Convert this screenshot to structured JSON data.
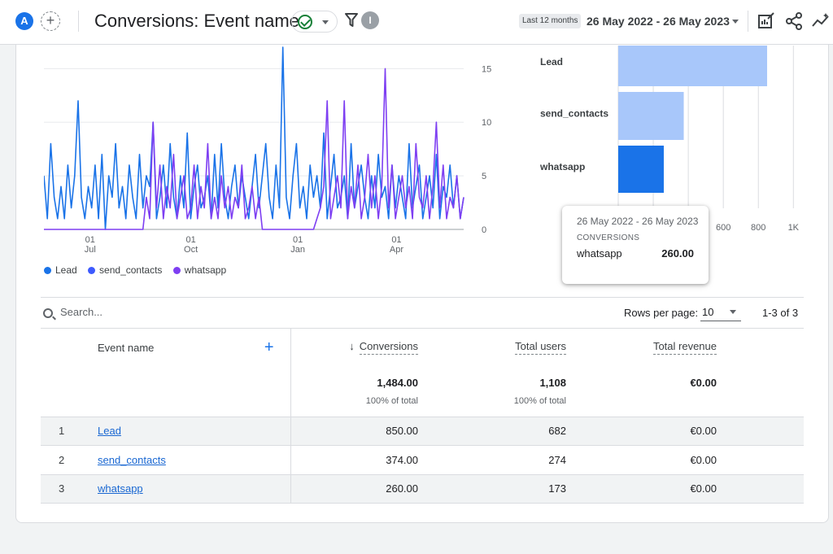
{
  "header": {
    "avatar_letter": "A",
    "title": "Conversions: Event name",
    "range_label": "Last 12 months",
    "date_range": "26 May 2022 - 26 May 2023",
    "info_letter": "I"
  },
  "line_chart": {
    "y_ticks": [
      "15",
      "10",
      "5",
      "0"
    ],
    "x_ticks": [
      {
        "day": "01",
        "month": "Jul"
      },
      {
        "day": "01",
        "month": "Oct"
      },
      {
        "day": "01",
        "month": "Jan"
      },
      {
        "day": "01",
        "month": "Apr"
      }
    ],
    "legend": [
      "Lead",
      "send_contacts",
      "whatsapp"
    ]
  },
  "bar_chart": {
    "x_ticks": [
      "600",
      "800",
      "1K"
    ]
  },
  "tooltip": {
    "range": "26 May 2022 - 26 May 2023",
    "metric": "CONVERSIONS",
    "label": "whatsapp",
    "value": "260.00"
  },
  "table_controls": {
    "search_placeholder": "Search...",
    "rows_per_page_label": "Rows per page:",
    "rows_per_page": "10",
    "pager": "1-3 of 3"
  },
  "table": {
    "col_event": "Event name",
    "col_conversions": "Conversions",
    "col_users": "Total users",
    "col_revenue": "Total revenue",
    "totals": {
      "conversions": "1,484.00",
      "users": "1,108",
      "revenue": "€0.00"
    },
    "pct": {
      "conversions": "100% of total",
      "users": "100% of total"
    },
    "rows": [
      {
        "idx": "1",
        "name": "Lead",
        "conversions": "850.00",
        "users": "682",
        "revenue": "€0.00"
      },
      {
        "idx": "2",
        "name": "send_contacts",
        "conversions": "374.00",
        "users": "274",
        "revenue": "€0.00"
      },
      {
        "idx": "3",
        "name": "whatsapp",
        "conversions": "260.00",
        "users": "173",
        "revenue": "€0.00"
      }
    ]
  },
  "colors": {
    "lead": "#1a73e8",
    "send_contacts": "#3d5afe",
    "whatsapp": "#7e3ff2",
    "bar_light": "#a8c7fa",
    "bar_dark": "#1a73e8"
  },
  "chart_data": [
    {
      "type": "line",
      "x_range": [
        "26 May 2022",
        "26 May 2023"
      ],
      "ylim": [
        0,
        17
      ],
      "series": [
        {
          "name": "Lead",
          "values": [
            5,
            1,
            8,
            3,
            1,
            4,
            1,
            6,
            2,
            5,
            12,
            3,
            1,
            4,
            2,
            6,
            1,
            7,
            0,
            5,
            3,
            8,
            2,
            4,
            1,
            6,
            3,
            1,
            7,
            2,
            5,
            4,
            10,
            1,
            3,
            6,
            2,
            8,
            3,
            1,
            5,
            2,
            9,
            1,
            4,
            6,
            2,
            3,
            5,
            1,
            7,
            2,
            8,
            3,
            1,
            4,
            6,
            2,
            5,
            3,
            1,
            4,
            7,
            2,
            5,
            8,
            3,
            1,
            6,
            2,
            17,
            3,
            1,
            5,
            8,
            2,
            4,
            1,
            6,
            3,
            5,
            2,
            9,
            1,
            4,
            7,
            2,
            3,
            5,
            1,
            8,
            2,
            4,
            6,
            3,
            1,
            5,
            2,
            7,
            3,
            4,
            1,
            6,
            2,
            5,
            3,
            1,
            8,
            2,
            4,
            6,
            1,
            3,
            5,
            2,
            7,
            1,
            4,
            3,
            6,
            2,
            5,
            1,
            3
          ]
        },
        {
          "name": "send_contacts",
          "values": []
        },
        {
          "name": "whatsapp",
          "values": [
            0,
            0,
            0,
            0,
            0,
            0,
            0,
            0,
            0,
            0,
            0,
            0,
            0,
            0,
            0,
            0,
            0,
            0,
            0,
            0,
            0,
            0,
            0,
            0,
            0,
            0,
            0,
            0,
            0,
            0,
            3,
            1,
            10,
            2,
            6,
            1,
            4,
            2,
            7,
            1,
            3,
            5,
            1,
            2,
            6,
            1,
            4,
            2,
            8,
            1,
            3,
            1,
            5,
            2,
            4,
            1,
            3,
            2,
            6,
            1,
            2,
            4,
            1,
            3,
            0,
            0,
            0,
            0,
            0,
            0,
            0,
            0,
            0,
            0,
            0,
            0,
            0,
            0,
            0,
            0,
            1,
            2,
            4,
            12,
            1,
            3,
            5,
            2,
            12,
            1,
            4,
            2,
            6,
            1,
            3,
            7,
            2,
            5,
            1,
            4,
            15,
            2,
            6,
            1,
            3,
            5,
            2,
            4,
            1,
            8,
            3,
            2,
            5,
            1,
            4,
            10,
            2,
            6,
            1,
            3,
            2,
            5,
            1,
            3
          ]
        }
      ]
    },
    {
      "type": "bar",
      "orientation": "horizontal",
      "categories": [
        "Lead",
        "send_contacts",
        "whatsapp"
      ],
      "values": [
        850,
        374,
        260
      ],
      "x_ticks": [
        "600",
        "800",
        "1K"
      ],
      "xlim": [
        0,
        1000
      ]
    }
  ]
}
